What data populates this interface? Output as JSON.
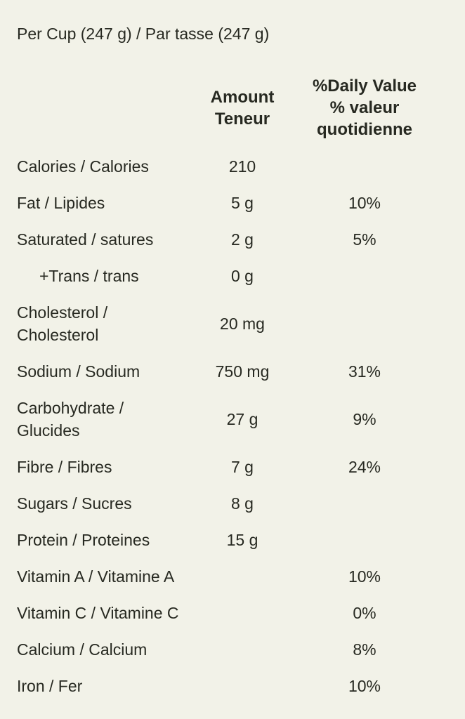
{
  "colors": {
    "background": "#f2f2e8",
    "text": "#272921"
  },
  "serving": {
    "title": "Per Cup (247 g) / Par tasse (247 g)"
  },
  "table": {
    "headers": {
      "amount": "Amount\nTeneur",
      "daily_value": "%Daily Value\n% valeur\nquotidienne"
    },
    "rows": [
      {
        "label": "Calories / Calories",
        "amount": "210",
        "dv": "",
        "indent": false
      },
      {
        "label": "Fat / Lipides",
        "amount": "5 g",
        "dv": "10%",
        "indent": false
      },
      {
        "label": "Saturated / satures",
        "amount": "2 g",
        "dv": "5%",
        "indent": false
      },
      {
        "label": "+Trans / trans",
        "amount": "0 g",
        "dv": "",
        "indent": true
      },
      {
        "label": "Cholesterol /\nCholesterol",
        "amount": "20 mg",
        "dv": "",
        "indent": false
      },
      {
        "label": "Sodium / Sodium",
        "amount": "750 mg",
        "dv": "31%",
        "indent": false
      },
      {
        "label": "Carbohydrate /\nGlucides",
        "amount": "27 g",
        "dv": "9%",
        "indent": false
      },
      {
        "label": "Fibre / Fibres",
        "amount": "7 g",
        "dv": "24%",
        "indent": false
      },
      {
        "label": "Sugars / Sucres",
        "amount": "8 g",
        "dv": "",
        "indent": false
      },
      {
        "label": "Protein / Proteines",
        "amount": "15 g",
        "dv": "",
        "indent": false
      },
      {
        "label": "Vitamin A / Vitamine A",
        "amount": "",
        "dv": "10%",
        "indent": false
      },
      {
        "label": "Vitamin C / Vitamine C",
        "amount": "",
        "dv": "0%",
        "indent": false
      },
      {
        "label": "Calcium / Calcium",
        "amount": "",
        "dv": "8%",
        "indent": false
      },
      {
        "label": "Iron / Fer",
        "amount": "",
        "dv": "10%",
        "indent": false
      }
    ]
  }
}
